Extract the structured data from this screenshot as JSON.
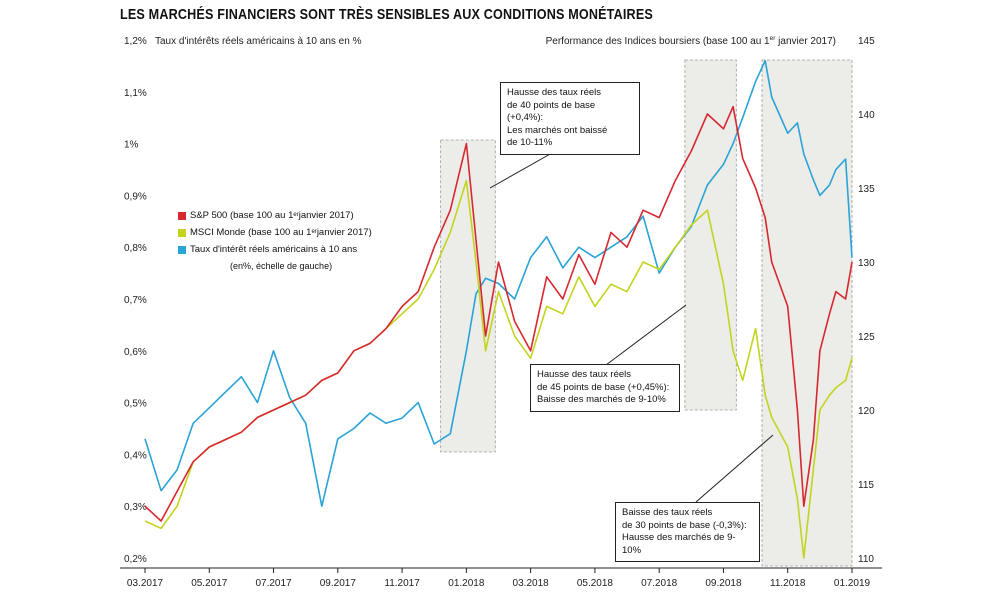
{
  "title": "LES MARCHÉS FINANCIERS SONT TRÈS SENSIBLES AUX CONDITIONS MONÉTAIRES",
  "chart_data": {
    "type": "line",
    "left_axis_title": "Taux d'intérêts réels américains à 10 ans en %",
    "right_axis_title_start": "Performance des Indices boursiers (base 100 au 1",
    "right_axis_title_sup": "er",
    "right_axis_title_end": " janvier 2017)",
    "left_ticks": [
      "1,2%",
      "1,1%",
      "1%",
      "0,9%",
      "0,8%",
      "0,7%",
      "0,6%",
      "0,5%",
      "0,4%",
      "0,3%",
      "0,2%"
    ],
    "left_tick_values": [
      1.2,
      1.1,
      1.0,
      0.9,
      0.8,
      0.7,
      0.6,
      0.5,
      0.4,
      0.3,
      0.2
    ],
    "right_ticks": [
      "145",
      "140",
      "135",
      "130",
      "125",
      "120",
      "115",
      "110"
    ],
    "right_tick_values": [
      145,
      140,
      135,
      130,
      125,
      120,
      115,
      110
    ],
    "ylim_left": [
      0.2,
      1.2
    ],
    "ylim_right": [
      110,
      145
    ],
    "x_tick_labels": [
      "03.2017",
      "05.2017",
      "07.2017",
      "09.2017",
      "11.2017",
      "01.2018",
      "03.2018",
      "05.2018",
      "07.2018",
      "09.2018",
      "11.2018",
      "01.2019"
    ],
    "x_tick_positions": [
      0,
      2,
      4,
      6,
      8,
      10,
      12,
      14,
      16,
      18,
      20,
      22
    ],
    "xlim": [
      0,
      22
    ],
    "x": [
      0,
      0.5,
      1,
      1.5,
      2,
      2.5,
      3,
      3.5,
      4,
      4.5,
      5,
      5.5,
      6,
      6.5,
      7,
      7.5,
      8,
      8.5,
      9,
      9.5,
      10,
      10.3,
      10.6,
      11,
      11.5,
      12,
      12.5,
      13,
      13.5,
      14,
      14.5,
      15,
      15.5,
      16,
      16.5,
      17,
      17.5,
      18,
      18.3,
      18.6,
      19,
      19.3,
      19.5,
      20,
      20.3,
      20.5,
      20.8,
      21,
      21.3,
      21.5,
      21.8,
      22
    ],
    "series": [
      {
        "name": "S&P 500",
        "legend_main": "S&P 500 (base 100 au 1",
        "legend_sup": "er",
        "legend_end": " janvier 2017)",
        "color": "#d7282f",
        "axis": "right",
        "values": [
          113.5,
          112.5,
          114.5,
          116.5,
          117.5,
          118,
          118.5,
          119.5,
          120,
          120.5,
          121,
          122,
          122.5,
          124,
          124.5,
          125.5,
          127,
          128,
          131,
          133.5,
          138,
          131.5,
          125,
          130,
          126,
          124,
          129,
          127.5,
          130.5,
          128.5,
          132,
          131,
          133.5,
          133,
          135.5,
          137.5,
          140,
          139,
          140.5,
          137,
          135,
          133,
          130,
          127,
          120,
          113.5,
          118,
          124,
          126.5,
          128,
          127.5,
          130
        ]
      },
      {
        "name": "MSCI Monde",
        "legend_main": "MSCI Monde (base 100 au 1",
        "legend_sup": "er",
        "legend_end": " janvier 2017)",
        "color": "#c3d41f",
        "axis": "right",
        "values": [
          112.5,
          112,
          113.5,
          116.5,
          117.5,
          118,
          118.5,
          119.5,
          120,
          120.5,
          121,
          122,
          122.5,
          124,
          124.5,
          125.5,
          126.5,
          127.5,
          129.5,
          132,
          135.5,
          130,
          124,
          128,
          125,
          123.5,
          127,
          126.5,
          129,
          127,
          128.5,
          128,
          130,
          129.5,
          131,
          132.5,
          133.5,
          128.5,
          124,
          122,
          125.5,
          121,
          119.5,
          117.5,
          114,
          110,
          116,
          120,
          121,
          121.5,
          122,
          123.5
        ]
      },
      {
        "name": "Taux d'intérêt réels américains à 10 ans",
        "legend_main": "Taux d'intérêt réels américains à 10 ans",
        "legend_sup": "",
        "legend_end": "",
        "note": "(en%, échelle de gauche)",
        "color": "#2aa3d6",
        "axis": "left",
        "values": [
          0.43,
          0.33,
          0.37,
          0.46,
          0.49,
          0.52,
          0.55,
          0.5,
          0.6,
          0.51,
          0.46,
          0.3,
          0.43,
          0.45,
          0.48,
          0.46,
          0.47,
          0.5,
          0.42,
          0.44,
          0.6,
          0.71,
          0.74,
          0.73,
          0.7,
          0.78,
          0.82,
          0.76,
          0.8,
          0.78,
          0.8,
          0.82,
          0.86,
          0.75,
          0.8,
          0.84,
          0.92,
          0.96,
          1.0,
          1.05,
          1.12,
          1.16,
          1.09,
          1.02,
          1.04,
          0.98,
          0.93,
          0.9,
          0.92,
          0.95,
          0.97,
          0.78
        ]
      }
    ],
    "shaded_ranges": [
      [
        9.2,
        10.9
      ],
      [
        16.8,
        18.4
      ],
      [
        19.2,
        22
      ]
    ],
    "annotations": [
      "Hausse des taux réels\nde 40 points de base (+0,4%):\nLes marchés ont baissé\nde 10-11%",
      "Hausse des taux réels\nde 45 points de base (+0,45%):\nBaisse des marchés de 9-10%",
      "Baisse des taux réels\nde 30 points de base (-0,3%):\nHausse des marchés de 9-10%"
    ]
  }
}
